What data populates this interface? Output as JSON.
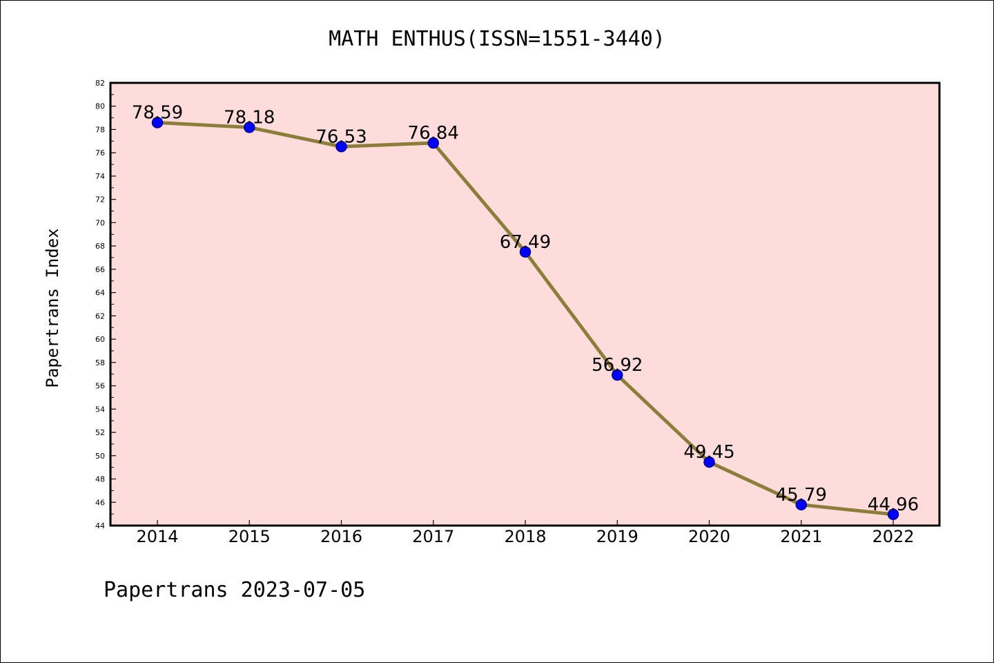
{
  "chart_data": {
    "type": "line",
    "title": "MATH ENTHUS(ISSN=1551-3440)",
    "xlabel": "",
    "ylabel": "Papertrans Index",
    "categories": [
      "2014",
      "2015",
      "2016",
      "2017",
      "2018",
      "2019",
      "2020",
      "2021",
      "2022"
    ],
    "series": [
      {
        "values": [
          78.59,
          78.18,
          76.53,
          76.84,
          67.49,
          56.92,
          49.45,
          45.79,
          44.96
        ],
        "data_labels": [
          "78.59",
          "78.18",
          "76.53",
          "76.84",
          "67.49",
          "56.92",
          "49.45",
          "45.79",
          "44.96"
        ]
      }
    ],
    "ylim": [
      44,
      82
    ],
    "y_ticks": [
      "44",
      "46",
      "48",
      "50",
      "52",
      "54",
      "56",
      "58",
      "60",
      "62",
      "64",
      "66",
      "68",
      "70",
      "72",
      "74",
      "76",
      "78",
      "80",
      "82"
    ],
    "grid": false,
    "legend": "none",
    "colors": {
      "plot_background": "#ffdcdc",
      "line": "#8b7d3a",
      "marker": "#0000ff",
      "marker_edge": "#00008b"
    }
  },
  "footer": {
    "text": "Papertrans 2023-07-05"
  }
}
